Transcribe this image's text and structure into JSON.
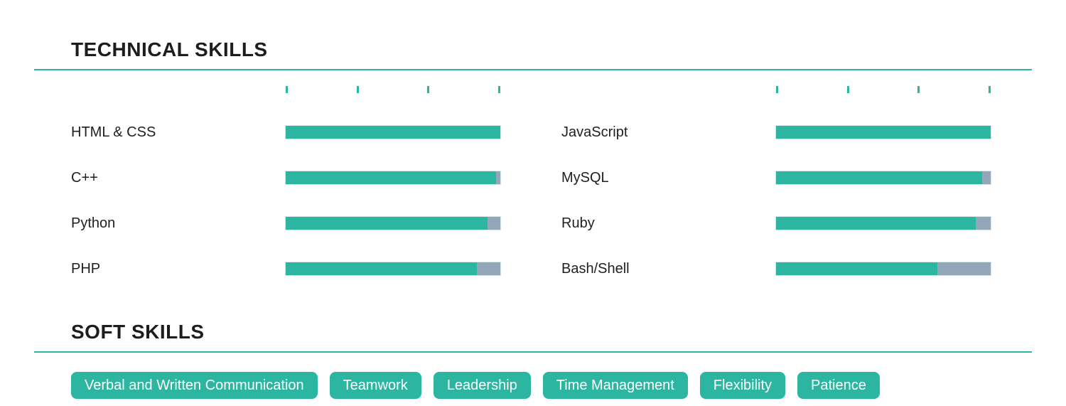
{
  "colors": {
    "accent_teal": "#2cb5a0",
    "bar_remainder_gray": "#93a7ba",
    "heading_text": "#1d1d1b",
    "label_text": "#1f1f1f",
    "pill_text": "#ffffff"
  },
  "technical": {
    "title": "TECHNICAL SKILLS"
  },
  "soft": {
    "title": "SOFT SKILLS",
    "pills": [
      "Verbal and Written Communication",
      "Teamwork",
      "Leadership",
      "Time Management",
      "Flexibility",
      "Patience"
    ]
  },
  "chart_data": {
    "type": "bar",
    "title": "TECHNICAL SKILLS",
    "orientation": "horizontal",
    "value_unit": "percent",
    "xlim": [
      0,
      100
    ],
    "ticks_per_track": 4,
    "grid": false,
    "legend": false,
    "columns": [
      {
        "skills": [
          {
            "label": "HTML & CSS",
            "percent": 100
          },
          {
            "label": "C++",
            "percent": 98
          },
          {
            "label": "Python",
            "percent": 94
          },
          {
            "label": "PHP",
            "percent": 89
          }
        ]
      },
      {
        "skills": [
          {
            "label": "JavaScript",
            "percent": 100
          },
          {
            "label": "MySQL",
            "percent": 96
          },
          {
            "label": "Ruby",
            "percent": 93
          },
          {
            "label": "Bash/Shell",
            "percent": 75
          }
        ]
      }
    ]
  }
}
